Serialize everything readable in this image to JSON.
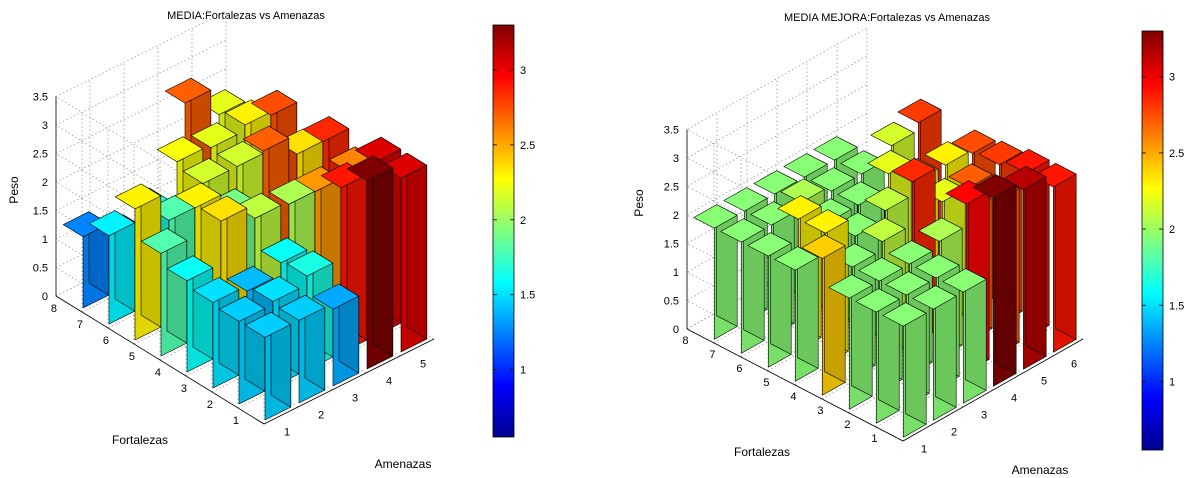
{
  "chart_data": [
    {
      "type": "bar3d",
      "title": "MEDIA:Fortalezas vs Amenazas",
      "xlabel": "Amenazas",
      "ylabel": "Fortalezas",
      "zlabel": "Peso",
      "x_ticks": [
        "1",
        "2",
        "3",
        "4",
        "5"
      ],
      "y_ticks": [
        "1",
        "2",
        "3",
        "4",
        "5",
        "6",
        "7",
        "8"
      ],
      "z_ticks": [
        "0",
        "0.5",
        "1",
        "1.5",
        "2",
        "2.5",
        "3",
        "3.5"
      ],
      "zlim": [
        0,
        3.5
      ],
      "grid": true,
      "colormap": "jet",
      "colorbar": {
        "clim": [
          0.55,
          3.3
        ],
        "ticks": [
          "1",
          "1.5",
          "2",
          "2.5",
          "3"
        ],
        "tick_values": [
          1,
          1.5,
          2,
          2.5,
          3
        ]
      },
      "rows_by_fortaleza": [
        [
          1.45,
          1.45,
          1.35,
          3.3,
          3.05
        ],
        [
          1.45,
          1.5,
          1.65,
          2.9,
          3.05
        ],
        [
          1.5,
          1.4,
          1.6,
          2.55,
          2.6
        ],
        [
          1.6,
          2.35,
          2.1,
          2.05,
          2.85
        ],
        [
          1.8,
          2.3,
          1.9,
          2.7,
          2.35
        ],
        [
          2.3,
          1.8,
          2.15,
          2.15,
          2.75
        ],
        [
          1.55,
          1.65,
          2.25,
          2.2,
          2.3
        ],
        [
          1.25,
          0.9,
          0.65,
          2.7,
          2.2
        ]
      ]
    },
    {
      "type": "bar3d",
      "title": "MEDIA MEJORA:Fortalezas vs Amenazas",
      "xlabel": "Amenazas",
      "ylabel": "Fortalezas",
      "zlabel": "Peso",
      "x_ticks": [
        "1",
        "2",
        "3",
        "4",
        "5",
        "6"
      ],
      "y_ticks": [
        "1",
        "2",
        "3",
        "4",
        "5",
        "6",
        "7",
        "8"
      ],
      "z_ticks": [
        "0",
        "0.5",
        "1",
        "1.5",
        "2",
        "2.5",
        "3",
        "3.5"
      ],
      "zlim": [
        0,
        3.5
      ],
      "grid": true,
      "colormap": "jet",
      "colorbar": {
        "clim": [
          0.55,
          3.3
        ],
        "ticks": [
          "1",
          "1.5",
          "2",
          "2.5",
          "3"
        ],
        "tick_values": [
          1,
          1.5,
          2,
          2.5,
          3
        ]
      },
      "rows_by_fortaleza": [
        [
          1.95,
          1.95,
          1.95,
          3.3,
          3.15,
          2.9
        ],
        [
          1.95,
          1.95,
          1.95,
          2.95,
          2.7,
          2.9
        ],
        [
          1.95,
          1.95,
          1.95,
          2.05,
          2.7,
          2.8
        ],
        [
          2.4,
          1.95,
          2.1,
          2.85,
          2.2,
          2.75
        ],
        [
          1.95,
          2.3,
          1.95,
          2.1,
          2.3,
          2.3
        ],
        [
          1.95,
          2.3,
          1.95,
          1.95,
          2.2,
          2.8
        ],
        [
          1.95,
          1.95,
          2.05,
          1.95,
          1.95,
          2.15
        ],
        [
          1.95,
          1.95,
          1.95,
          1.95,
          1.95,
          0.6
        ]
      ]
    }
  ]
}
